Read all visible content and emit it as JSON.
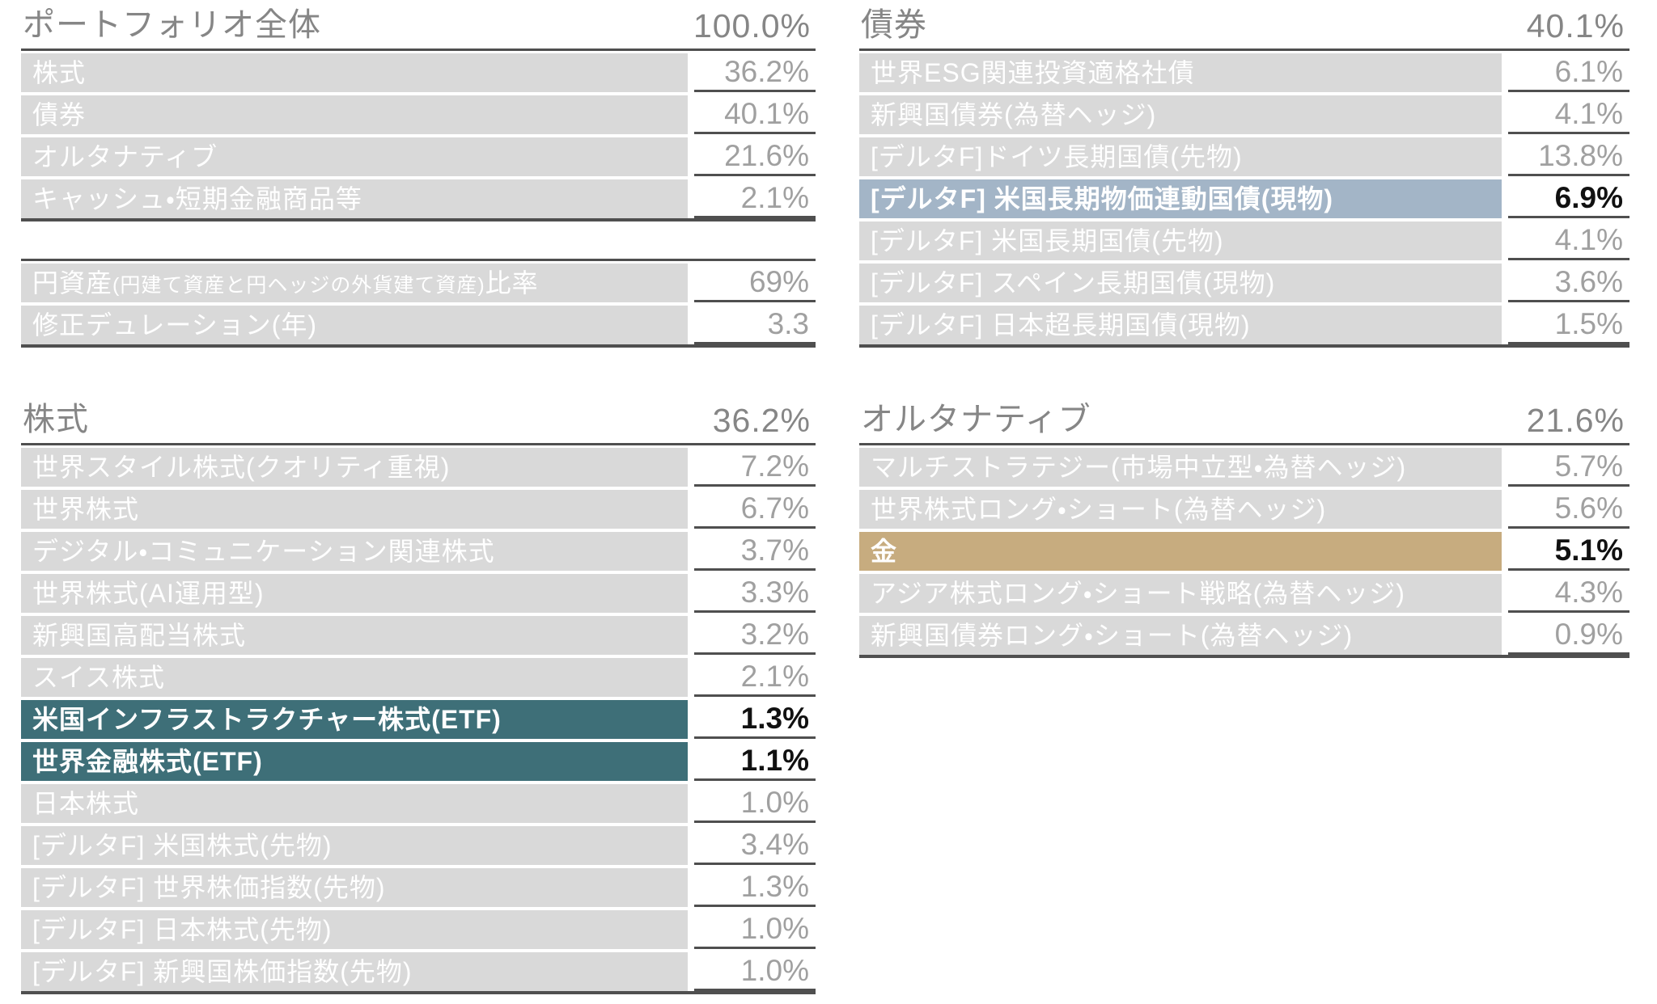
{
  "colors": {
    "row_bg": "#d9d9d9",
    "border_dark": "#4f4f4f",
    "header_text": "#868686",
    "label_text": "#ffffff",
    "value_text": "#a0a0a0",
    "highlight_value_text": "#111111",
    "highlight_blue": "#a3b5c7",
    "highlight_teal": "#3e6f78",
    "highlight_gold": "#c7ac7f"
  },
  "tables": {
    "portfolio": {
      "title": "ポートフォリオ全体",
      "total": "100.0%",
      "rows": [
        {
          "label": "株式",
          "value": "36.2%"
        },
        {
          "label": "債券",
          "value": "40.1%"
        },
        {
          "label": "オルタナティブ",
          "value": "21.6%"
        },
        {
          "label": "キャッシュ・短期金融商品等",
          "value": "2.1%"
        }
      ]
    },
    "metrics": {
      "rows": [
        {
          "label_main": "円資産",
          "label_note": "(円建て資産と円ヘッジの外貨建て資産)",
          "label_suffix": "比率",
          "value": "69%"
        },
        {
          "label_main": "修正デュレーション(年)",
          "label_note": "",
          "label_suffix": "",
          "value": "3.3"
        }
      ]
    },
    "equity": {
      "title": "株式",
      "total": "36.2%",
      "rows": [
        {
          "label": "世界スタイル株式(クオリティ重視)",
          "value": "7.2%"
        },
        {
          "label": "世界株式",
          "value": "6.7%"
        },
        {
          "label": "デジタル・コミュニケーション関連株式",
          "value": "3.7%"
        },
        {
          "label": "世界株式(AI運用型)",
          "value": "3.3%"
        },
        {
          "label": "新興国高配当株式",
          "value": "3.2%"
        },
        {
          "label": "スイス株式",
          "value": "2.1%"
        },
        {
          "label": "米国インフラストラクチャー株式(ETF)",
          "value": "1.3%",
          "highlight": "teal"
        },
        {
          "label": "世界金融株式(ETF)",
          "value": "1.1%",
          "highlight": "teal"
        },
        {
          "label": "日本株式",
          "value": "1.0%"
        },
        {
          "label": "[デルタF] 米国株式(先物)",
          "value": "3.4%"
        },
        {
          "label": "[デルタF] 世界株価指数(先物)",
          "value": "1.3%"
        },
        {
          "label": "[デルタF] 日本株式(先物)",
          "value": "1.0%"
        },
        {
          "label": "[デルタF] 新興国株価指数(先物)",
          "value": "1.0%"
        }
      ]
    },
    "bonds": {
      "title": "債券",
      "total": "40.1%",
      "rows": [
        {
          "label": "世界ESG関連投資適格社債",
          "value": "6.1%"
        },
        {
          "label": "新興国債券(為替ヘッジ)",
          "value": "4.1%"
        },
        {
          "label": "[デルタF]ドイツ長期国債(先物)",
          "value": "13.8%"
        },
        {
          "label": "[デルタF] 米国長期物価連動国債(現物)",
          "value": "6.9%",
          "highlight": "blue"
        },
        {
          "label": "[デルタF] 米国長期国債(先物)",
          "value": "4.1%"
        },
        {
          "label": "[デルタF] スペイン長期国債(現物)",
          "value": "3.6%"
        },
        {
          "label": "[デルタF] 日本超長期国債(現物)",
          "value": "1.5%"
        }
      ]
    },
    "alternatives": {
      "title": "オルタナティブ",
      "total": "21.6%",
      "rows": [
        {
          "label": "マルチストラテジー(市場中立型・為替ヘッジ)",
          "value": "5.7%"
        },
        {
          "label": "世界株式ロング・ショート(為替ヘッジ)",
          "value": "5.6%"
        },
        {
          "label": "金",
          "value": "5.1%",
          "highlight": "gold"
        },
        {
          "label": "アジア株式ロング・ショート戦略(為替ヘッジ)",
          "value": "4.3%"
        },
        {
          "label": "新興国債券ロング・ショート(為替ヘッジ)",
          "value": "0.9%"
        }
      ]
    }
  }
}
